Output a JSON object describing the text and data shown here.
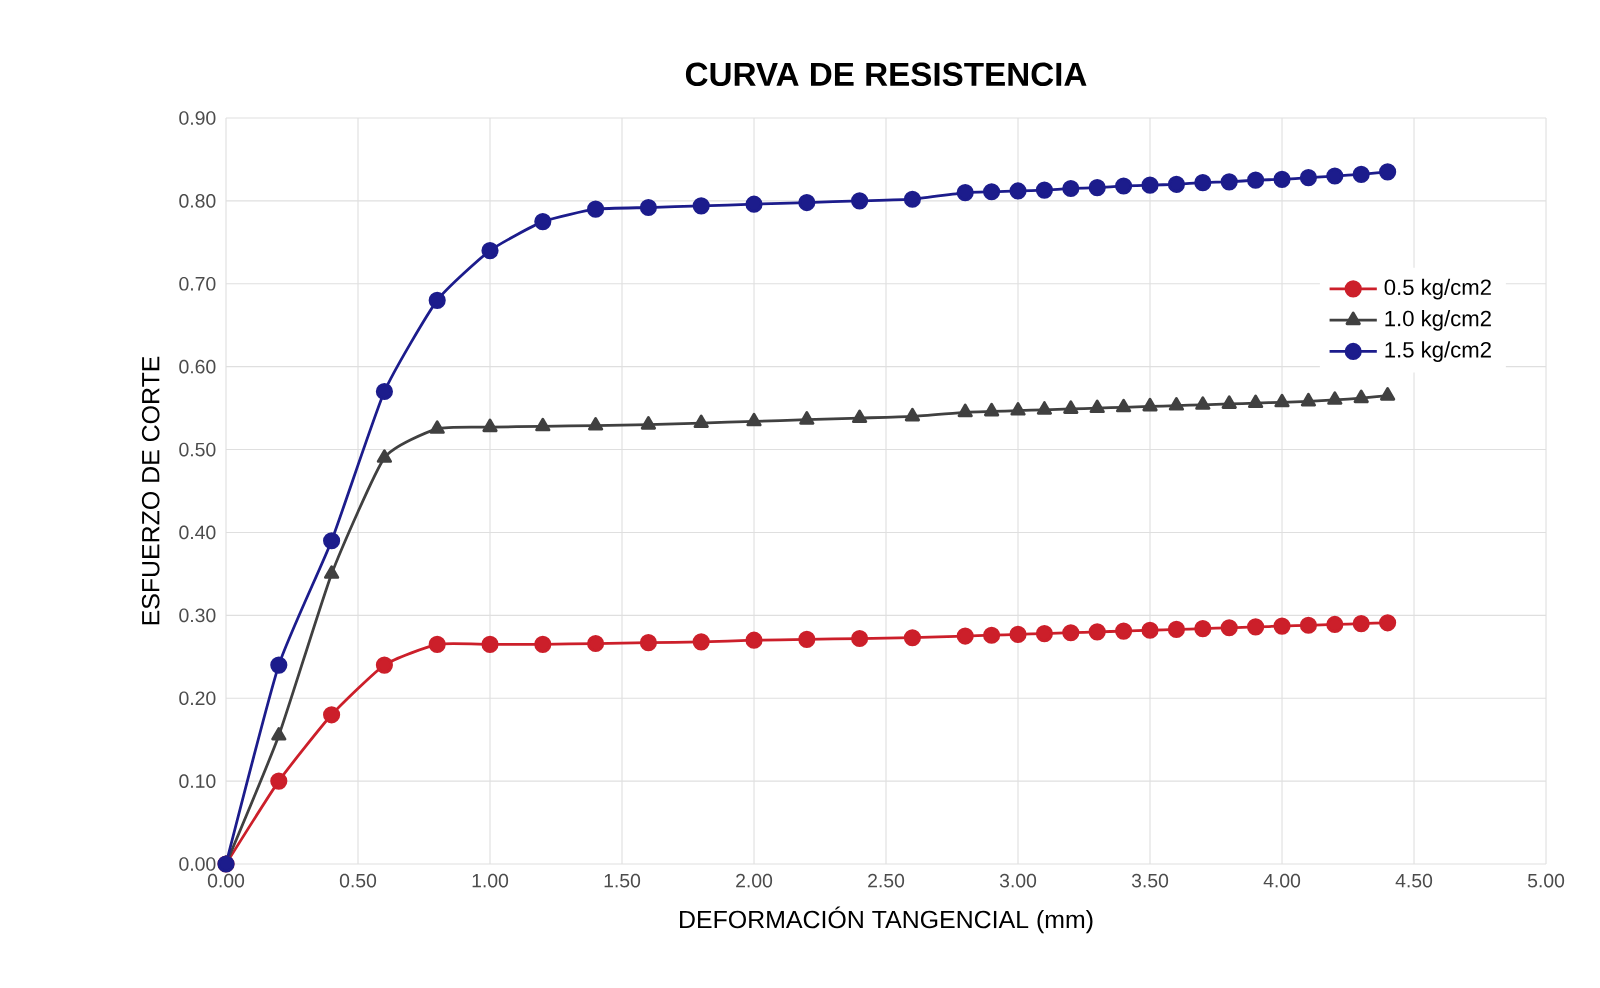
{
  "chart_data": {
    "type": "line",
    "title": "CURVA DE RESISTENCIA",
    "xlabel": "DEFORMACIÓN TANGENCIAL (mm)",
    "ylabel": "ESFUERZO DE CORTE",
    "x": [
      0,
      0.2,
      0.4,
      0.6,
      0.8,
      1.0,
      1.2,
      1.4,
      1.6,
      1.8,
      2.0,
      2.2,
      2.4,
      2.6,
      2.8,
      2.9,
      3.0,
      3.1,
      3.2,
      3.3,
      3.4,
      3.5,
      3.6,
      3.7,
      3.8,
      3.9,
      4.0,
      4.1,
      4.2,
      4.3,
      4.4
    ],
    "series": [
      {
        "name": "0.5 kg/cm2",
        "color": "#cc1f2a",
        "marker": "circle",
        "values": [
          0,
          0.1,
          0.18,
          0.24,
          0.265,
          0.265,
          0.265,
          0.266,
          0.267,
          0.268,
          0.27,
          0.271,
          0.272,
          0.273,
          0.275,
          0.276,
          0.277,
          0.278,
          0.279,
          0.28,
          0.281,
          0.282,
          0.283,
          0.284,
          0.285,
          0.286,
          0.287,
          0.288,
          0.289,
          0.29,
          0.291
        ]
      },
      {
        "name": "1.0 kg/cm2",
        "color": "#404040",
        "marker": "triangle",
        "values": [
          0,
          0.155,
          0.35,
          0.49,
          0.525,
          0.527,
          0.528,
          0.529,
          0.53,
          0.532,
          0.534,
          0.536,
          0.538,
          0.54,
          0.545,
          0.546,
          0.547,
          0.548,
          0.549,
          0.55,
          0.551,
          0.552,
          0.553,
          0.554,
          0.555,
          0.556,
          0.557,
          0.558,
          0.56,
          0.562,
          0.565
        ]
      },
      {
        "name": "1.5 kg/cm2",
        "color": "#1c1c8c",
        "marker": "circle",
        "values": [
          0,
          0.24,
          0.39,
          0.57,
          0.68,
          0.74,
          0.775,
          0.79,
          0.792,
          0.794,
          0.796,
          0.798,
          0.8,
          0.802,
          0.81,
          0.811,
          0.812,
          0.813,
          0.815,
          0.816,
          0.818,
          0.819,
          0.82,
          0.822,
          0.823,
          0.825,
          0.826,
          0.828,
          0.83,
          0.832,
          0.835
        ]
      }
    ],
    "xlim": [
      0,
      5
    ],
    "xticks": [
      {
        "value": 0,
        "label": "0.00"
      },
      {
        "value": 0.5,
        "label": "0.50"
      },
      {
        "value": 1,
        "label": "1.00"
      },
      {
        "value": 1.5,
        "label": "1.50"
      },
      {
        "value": 2,
        "label": "2.00"
      },
      {
        "value": 2.5,
        "label": "2.50"
      },
      {
        "value": 3,
        "label": "3.00"
      },
      {
        "value": 3.5,
        "label": "3.50"
      },
      {
        "value": 4,
        "label": "4.00"
      },
      {
        "value": 4.5,
        "label": "4.50"
      },
      {
        "value": 5,
        "label": "5.00"
      }
    ],
    "ylim": [
      0,
      0.9
    ],
    "yticks": [
      {
        "value": 0,
        "label": "0.00"
      },
      {
        "value": 0.1,
        "label": "0.10"
      },
      {
        "value": 0.2,
        "label": "0.20"
      },
      {
        "value": 0.3,
        "label": "0.30"
      },
      {
        "value": 0.4,
        "label": "0.40"
      },
      {
        "value": 0.5,
        "label": "0.50"
      },
      {
        "value": 0.6,
        "label": "0.60"
      },
      {
        "value": 0.7,
        "label": "0.70"
      },
      {
        "value": 0.8,
        "label": "0.80"
      },
      {
        "value": 0.9,
        "label": "0.90"
      }
    ],
    "grid": true,
    "legend": "right",
    "line_style": "solid"
  }
}
